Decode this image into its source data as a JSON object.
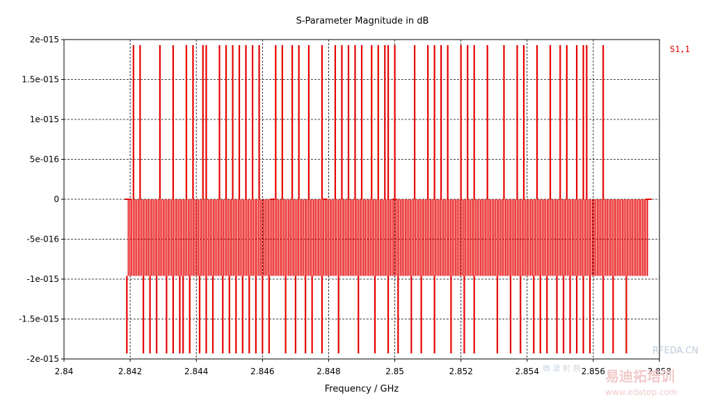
{
  "chart_data": {
    "type": "line",
    "title": "S-Parameter Magnitude in dB",
    "xlabel": "Frequency / GHz",
    "ylabel": "",
    "xlim": [
      2.84,
      2.858
    ],
    "ylim": [
      -2e-15,
      2e-15
    ],
    "x_ticks": [
      2.84,
      2.842,
      2.844,
      2.846,
      2.848,
      2.85,
      2.852,
      2.854,
      2.856,
      2.858
    ],
    "x_tick_labels": [
      "2.84",
      "2.842",
      "2.844",
      "2.846",
      "2.848",
      "2.85",
      "2.852",
      "2.854",
      "2.856",
      "2.858"
    ],
    "y_ticks": [
      2e-15,
      1.5e-15,
      1e-15,
      5e-16,
      0,
      -5e-16,
      -1e-15,
      -1.5e-15,
      -2e-15
    ],
    "y_tick_labels": [
      "2e-015",
      "1.5e-015",
      "1e-015",
      "5e-016",
      "0",
      "-5e-016",
      "-1e-015",
      "-1.5e-015",
      "-2e-015"
    ],
    "grid": true,
    "legend_position": "top-right",
    "series": [
      {
        "name": "S1,1",
        "color": "#e60000",
        "x_start": 2.8419,
        "x_end": 2.8577,
        "levels": [
          1.93e-15,
          0,
          -9.6e-16,
          -1.93e-15
        ],
        "spikes_up_x": [
          2.8421,
          2.8423,
          2.8429,
          2.8433,
          2.8437,
          2.8439,
          2.8442,
          2.8443,
          2.8447,
          2.8449,
          2.8451,
          2.8453,
          2.8455,
          2.8457,
          2.8459,
          2.8464,
          2.8466,
          2.8469,
          2.8471,
          2.8474,
          2.8478,
          2.8482,
          2.8484,
          2.8486,
          2.8488,
          2.849,
          2.8493,
          2.8495,
          2.8497,
          2.8498,
          2.85,
          2.8506,
          2.851,
          2.8512,
          2.8514,
          2.8516,
          2.852,
          2.8522,
          2.8524,
          2.8528,
          2.8533,
          2.8537,
          2.8539,
          2.8543,
          2.8547,
          2.855,
          2.8552,
          2.8555,
          2.8557,
          2.8558,
          2.8563
        ],
        "spikes_down_x": [
          2.8419,
          2.8424,
          2.8426,
          2.8428,
          2.8431,
          2.8433,
          2.8435,
          2.8436,
          2.8438,
          2.8441,
          2.8443,
          2.8445,
          2.8448,
          2.845,
          2.8452,
          2.8454,
          2.8456,
          2.8458,
          2.846,
          2.8462,
          2.8467,
          2.847,
          2.8473,
          2.8475,
          2.8478,
          2.8483,
          2.8489,
          2.8494,
          2.8498,
          2.8501,
          2.8505,
          2.8508,
          2.8512,
          2.8517,
          2.8521,
          2.8524,
          2.8531,
          2.8535,
          2.8538,
          2.8542,
          2.8544,
          2.8546,
          2.8549,
          2.8551,
          2.8553,
          2.8555,
          2.8557,
          2.8559,
          2.8563,
          2.8566,
          2.857
        ]
      }
    ]
  },
  "watermark": {
    "line1": "RFEDA.CN",
    "line2": "易迪拓培训",
    "line3": "www.edatop.com",
    "line4": "微 波 射 频"
  }
}
